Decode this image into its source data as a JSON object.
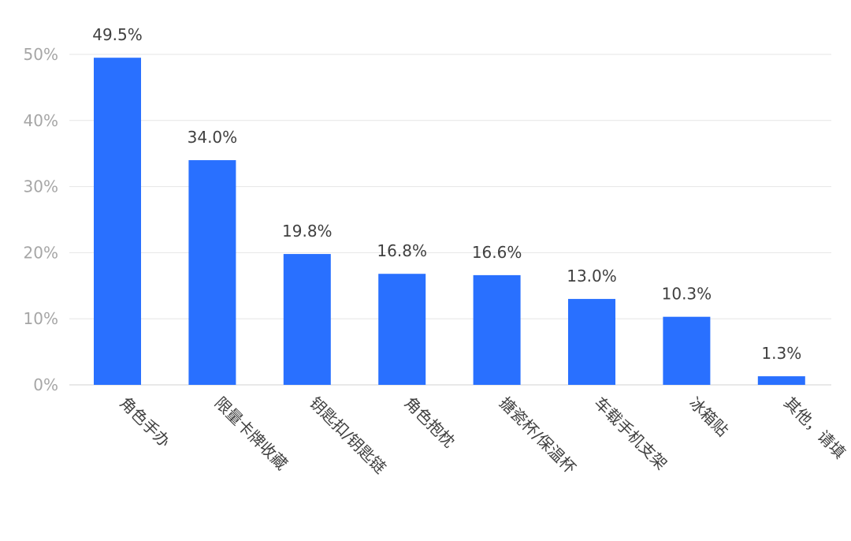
{
  "chart_data": {
    "type": "bar",
    "title": "",
    "xlabel": "",
    "ylabel": "",
    "categories": [
      "角色手办",
      "限量卡牌收藏",
      "钥匙扣/钥匙链",
      "角色抱枕",
      "搪瓷杯/保温杯",
      "车载手机支架",
      "冰箱贴",
      "其他，请填"
    ],
    "values": [
      49.5,
      34.0,
      19.8,
      16.8,
      16.6,
      13.0,
      10.3,
      1.3
    ],
    "value_labels": [
      "49.5%",
      "34.0%",
      "19.8%",
      "16.8%",
      "16.6%",
      "13.0%",
      "10.3%",
      "1.3%"
    ],
    "ylim": [
      0,
      50
    ],
    "yticks": [
      0,
      10,
      20,
      30,
      40,
      50
    ],
    "ytick_labels": [
      "0%",
      "10%",
      "20%",
      "30%",
      "40%",
      "50%"
    ],
    "grid": true,
    "legend": "none",
    "colors": {
      "bar": "#2970ff"
    }
  }
}
